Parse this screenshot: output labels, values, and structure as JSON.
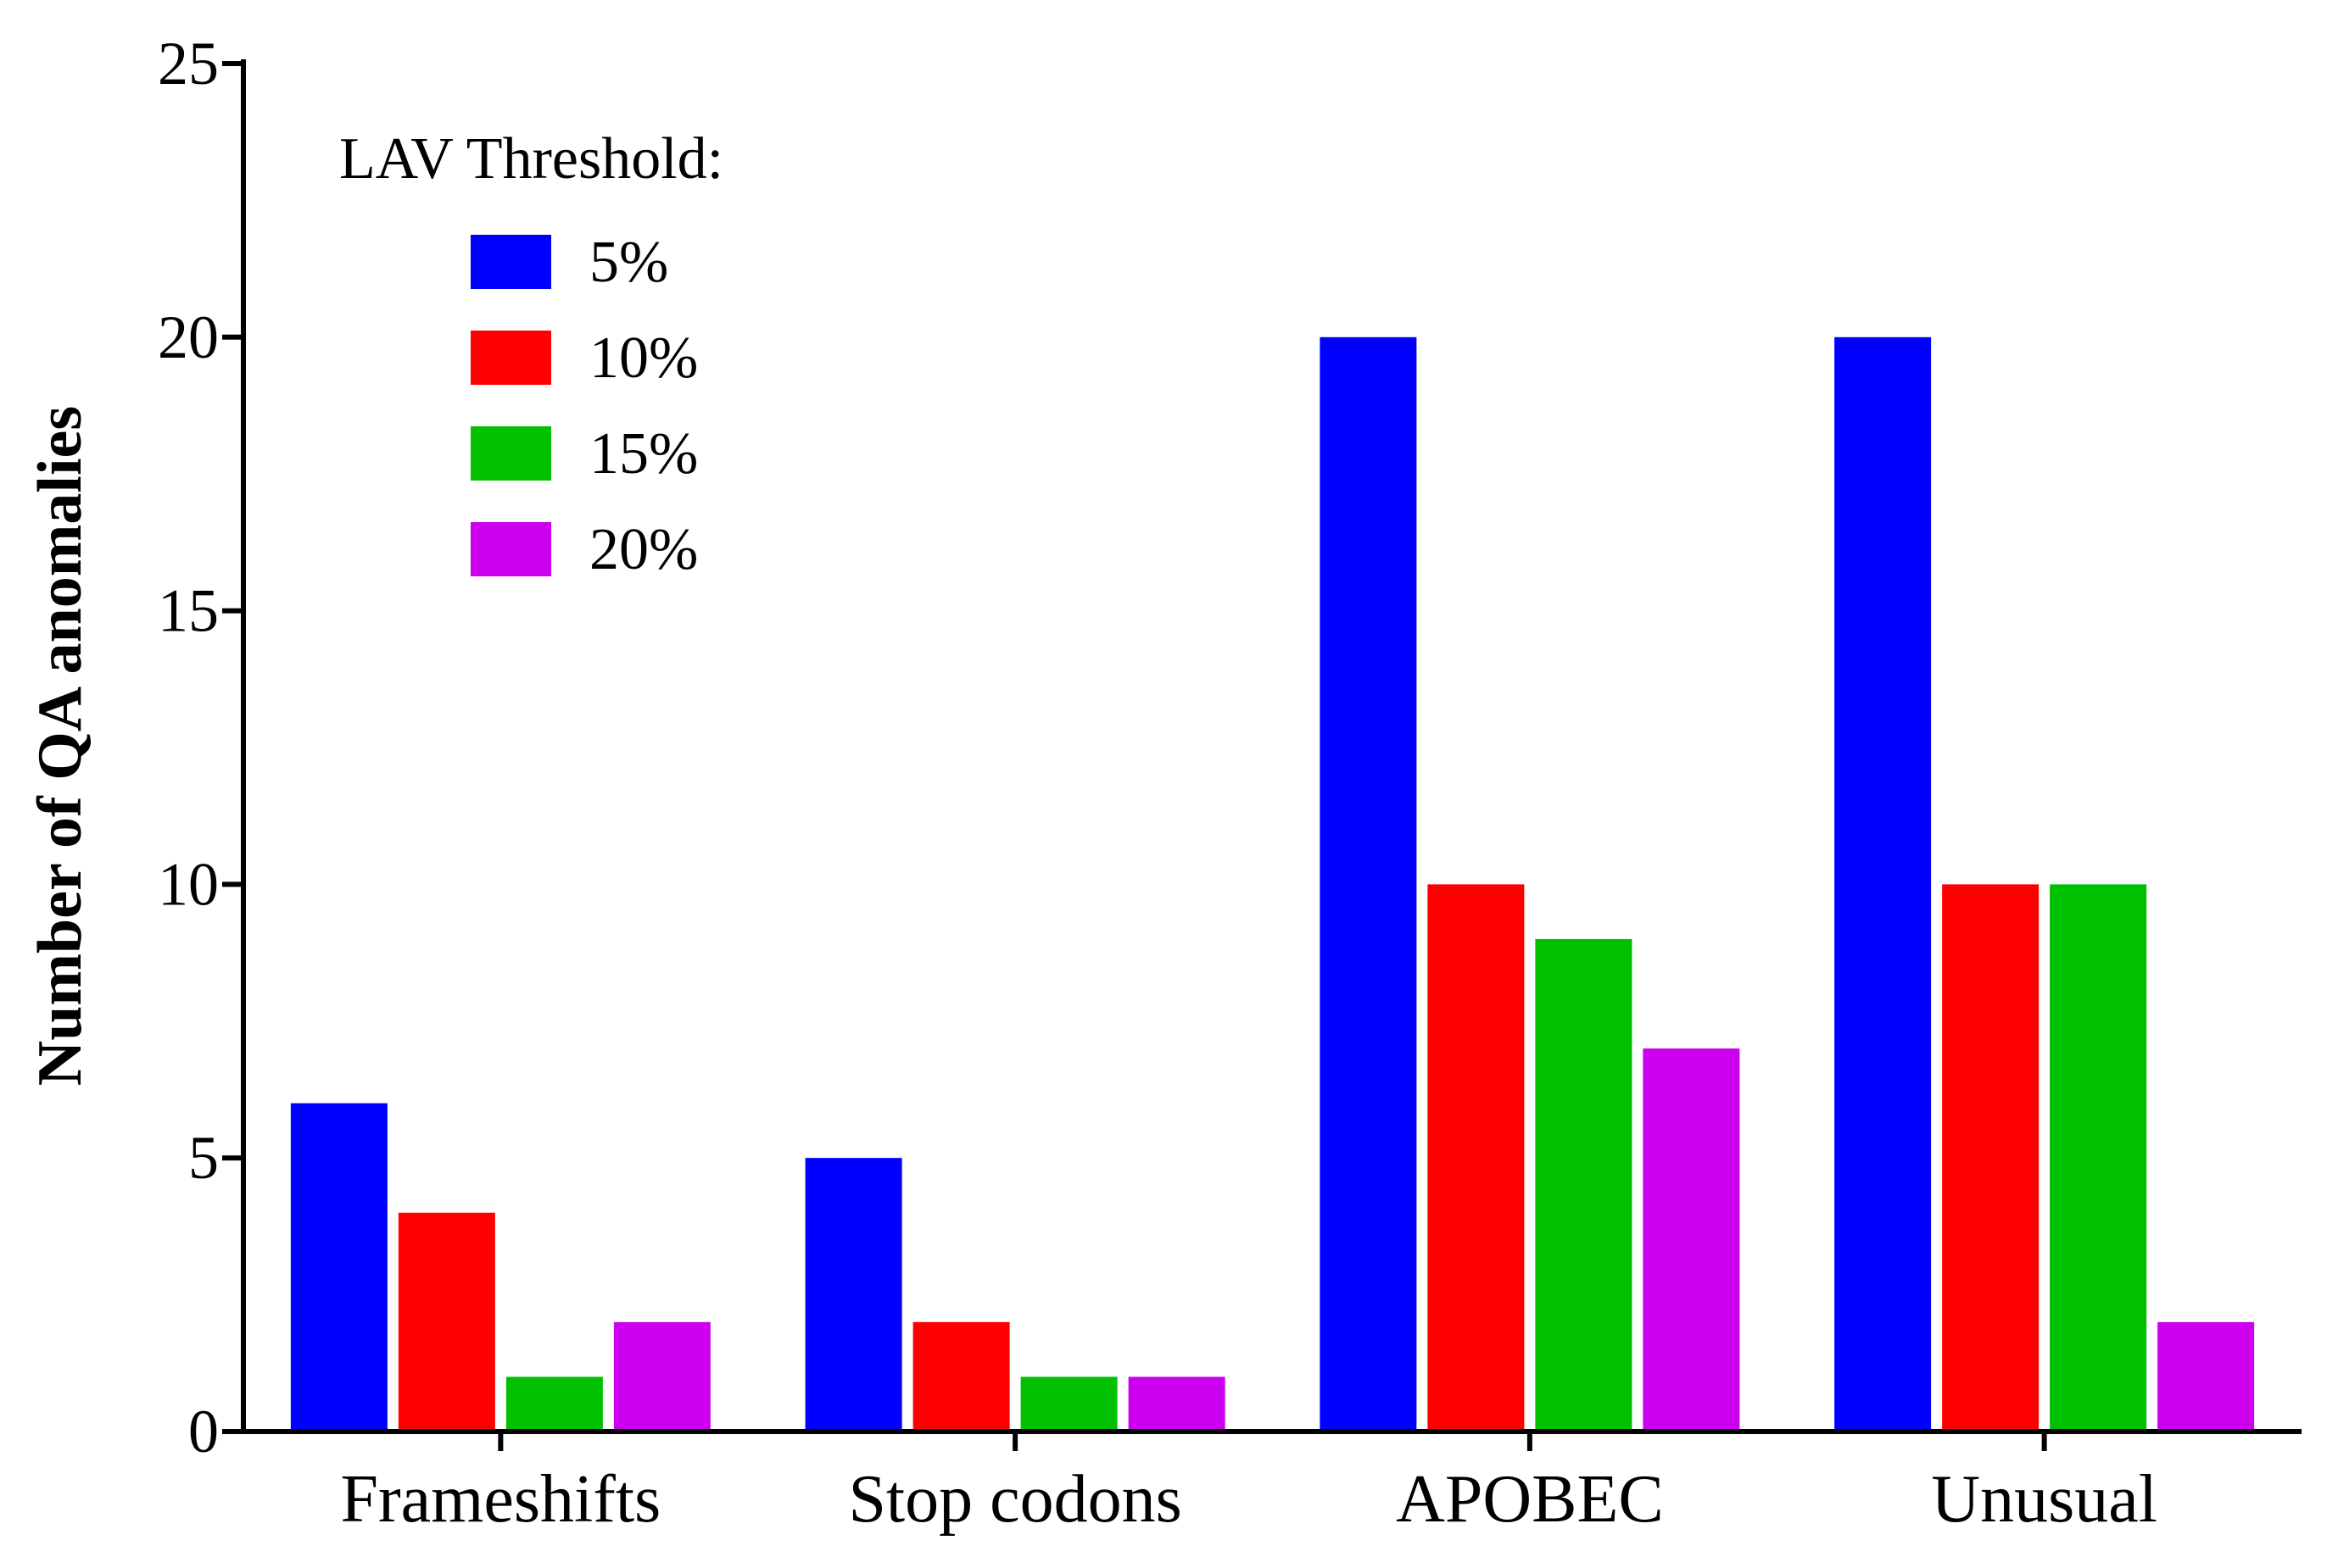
{
  "chart_data": {
    "type": "bar",
    "title": "",
    "xlabel": "",
    "ylabel": "Number of QA anomalies",
    "ylim": [
      0,
      25
    ],
    "yticks": [
      0,
      5,
      10,
      15,
      20,
      25
    ],
    "grid": false,
    "categories": [
      "Frameshifts",
      "Stop codons",
      "APOBEC",
      "Unusual"
    ],
    "legend": {
      "title": "LAV Threshold:",
      "position": "top-left"
    },
    "series": [
      {
        "name": "5%",
        "color": "#0000ff",
        "values": [
          6,
          5,
          20,
          20
        ]
      },
      {
        "name": "10%",
        "color": "#ff0000",
        "values": [
          4,
          2,
          10,
          10
        ]
      },
      {
        "name": "15%",
        "color": "#00c000",
        "values": [
          1,
          1,
          9,
          10
        ]
      },
      {
        "name": "20%",
        "color": "#cc00ee",
        "values": [
          2,
          1,
          7,
          2
        ]
      }
    ]
  }
}
